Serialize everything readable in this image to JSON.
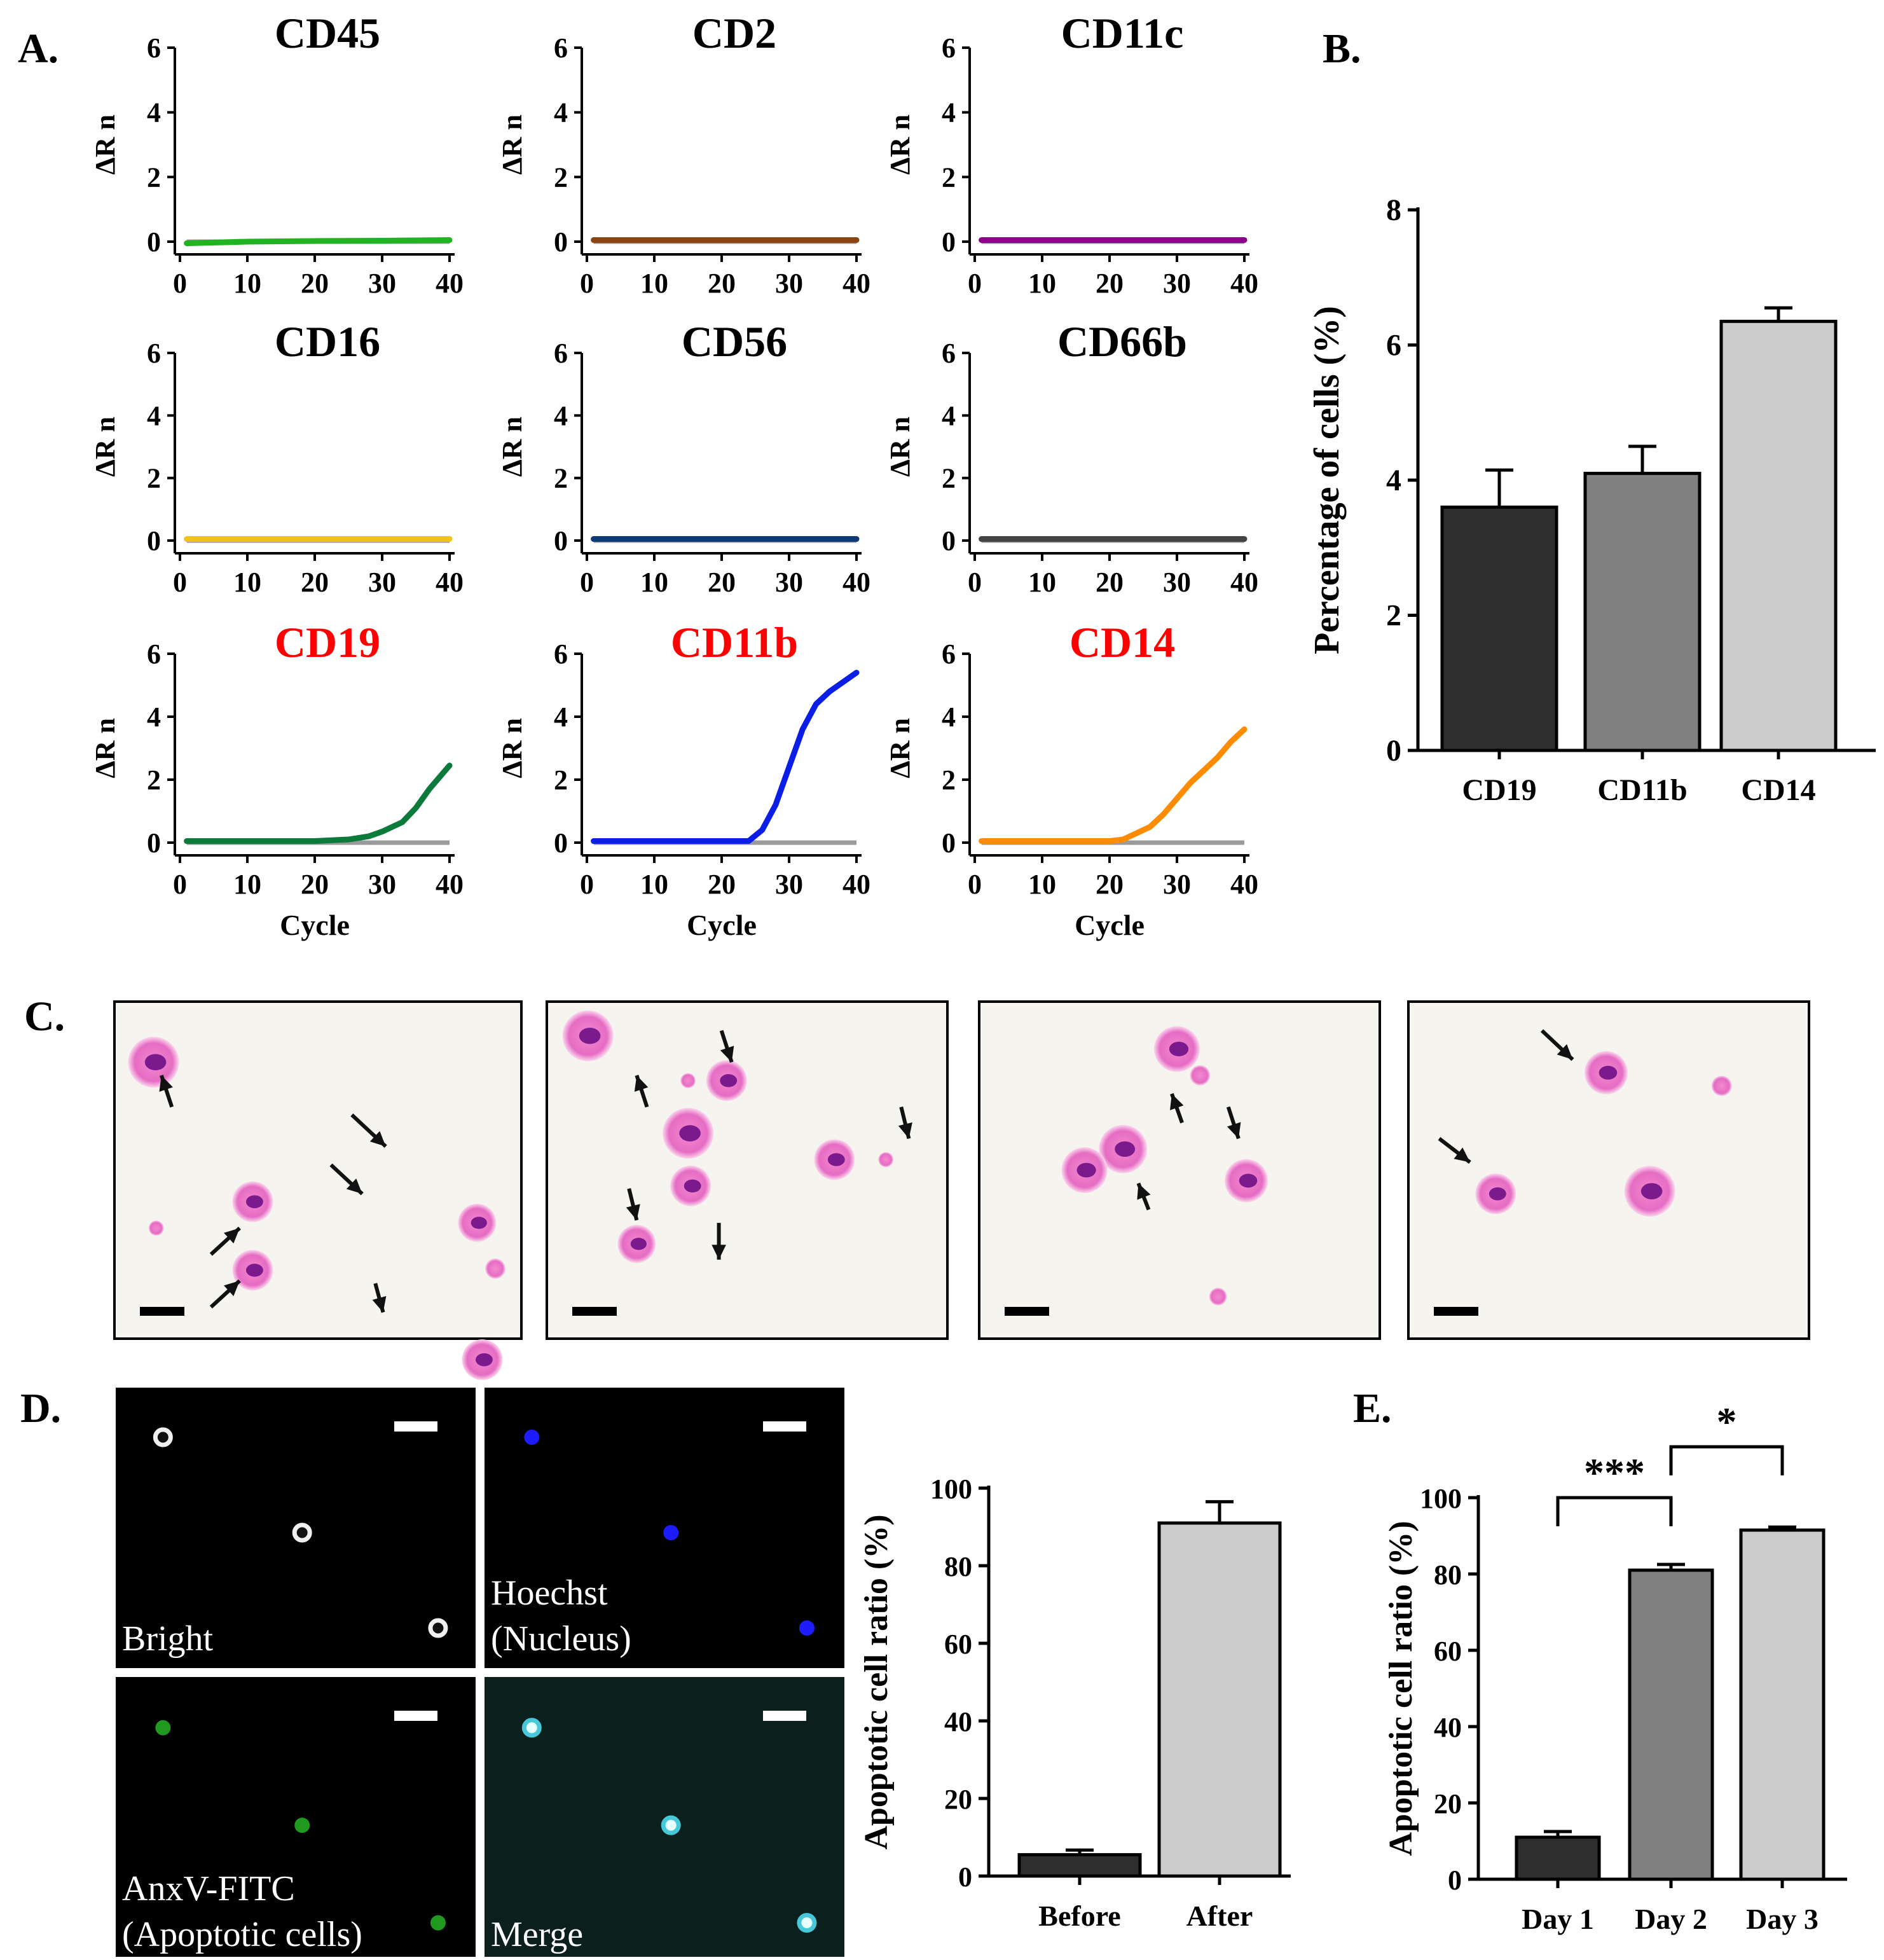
{
  "figure": {
    "panel_labels": {
      "A": "A.",
      "B": "B.",
      "C": "C.",
      "D": "D.",
      "E": "E."
    },
    "panel_a": {
      "xlabel": "Cycle",
      "ylabel": "ΔR n",
      "x_ticks": [
        "0",
        "10",
        "20",
        "30",
        "40"
      ],
      "y_ticks": [
        "0",
        "2",
        "4",
        "6"
      ],
      "title_colors": {
        "negative": "#000000",
        "positive": "#ff0000"
      }
    },
    "panel_c": {
      "description_labels": []
    },
    "panel_d": {
      "images": [
        {
          "label_lines": [
            "Bright"
          ],
          "scheme": "bright"
        },
        {
          "label_lines": [
            "Hoechst",
            "(Nucleus)"
          ],
          "scheme": "hoechst"
        },
        {
          "label_lines": [
            "AnxV-FITC",
            "(Apoptotic cells)"
          ],
          "scheme": "fitc"
        },
        {
          "label_lines": [
            "Merge"
          ],
          "scheme": "merge"
        }
      ]
    }
  },
  "chart_data": [
    {
      "id": "cd45",
      "type": "line",
      "title": "CD45",
      "positive": false,
      "color": "#22b322",
      "xlabel": "",
      "ylabel": "ΔR n",
      "xlim": [
        0,
        40
      ],
      "ylim": [
        0,
        6
      ],
      "x": [
        1,
        10,
        20,
        30,
        40
      ],
      "y": [
        -0.05,
        0.0,
        0.02,
        0.03,
        0.05
      ]
    },
    {
      "id": "cd2",
      "type": "line",
      "title": "CD2",
      "positive": false,
      "color": "#8b4513",
      "xlabel": "",
      "ylabel": "ΔR n",
      "xlim": [
        0,
        40
      ],
      "ylim": [
        0,
        6
      ],
      "x": [
        1,
        40
      ],
      "y": [
        0.05,
        0.05
      ]
    },
    {
      "id": "cd11c",
      "type": "line",
      "title": "CD11c",
      "positive": false,
      "color": "#8b008b",
      "xlabel": "",
      "ylabel": "ΔR n",
      "xlim": [
        0,
        40
      ],
      "ylim": [
        0,
        6
      ],
      "x": [
        1,
        40
      ],
      "y": [
        0.05,
        0.05
      ]
    },
    {
      "id": "cd16",
      "type": "line",
      "title": "CD16",
      "positive": false,
      "color": "#f0c419",
      "xlabel": "",
      "ylabel": "ΔR n",
      "xlim": [
        0,
        40
      ],
      "ylim": [
        0,
        6
      ],
      "x": [
        1,
        40
      ],
      "y": [
        0.05,
        0.05
      ]
    },
    {
      "id": "cd56",
      "type": "line",
      "title": "CD56",
      "positive": false,
      "color": "#0c3b78",
      "xlabel": "",
      "ylabel": "ΔR n",
      "xlim": [
        0,
        40
      ],
      "ylim": [
        0,
        6
      ],
      "x": [
        1,
        40
      ],
      "y": [
        0.05,
        0.05
      ]
    },
    {
      "id": "cd66b",
      "type": "line",
      "title": "CD66b",
      "positive": false,
      "color": "#444444",
      "xlabel": "",
      "ylabel": "ΔR n",
      "xlim": [
        0,
        40
      ],
      "ylim": [
        0,
        6
      ],
      "x": [
        1,
        40
      ],
      "y": [
        0.05,
        0.05
      ]
    },
    {
      "id": "cd19",
      "type": "line",
      "title": "CD19",
      "positive": true,
      "color": "#0b7a3b",
      "xlabel": "Cycle",
      "ylabel": "ΔR n",
      "xlim": [
        0,
        40
      ],
      "ylim": [
        0,
        6
      ],
      "x": [
        1,
        10,
        20,
        25,
        28,
        30,
        33,
        35,
        37,
        40
      ],
      "y": [
        0.05,
        0.05,
        0.05,
        0.1,
        0.2,
        0.35,
        0.65,
        1.1,
        1.7,
        2.45
      ]
    },
    {
      "id": "cd11b",
      "type": "line",
      "title": "CD11b",
      "positive": true,
      "color": "#0a1ee6",
      "xlabel": "Cycle",
      "ylabel": "ΔR n",
      "xlim": [
        0,
        40
      ],
      "ylim": [
        0,
        6
      ],
      "x": [
        1,
        10,
        20,
        24,
        26,
        28,
        30,
        32,
        34,
        36,
        38,
        40
      ],
      "y": [
        0.05,
        0.05,
        0.05,
        0.05,
        0.4,
        1.2,
        2.4,
        3.6,
        4.4,
        4.8,
        5.1,
        5.4
      ]
    },
    {
      "id": "cd14",
      "type": "line",
      "title": "CD14",
      "positive": true,
      "color": "#ff8c00",
      "xlabel": "Cycle",
      "ylabel": "ΔR n",
      "xlim": [
        0,
        40
      ],
      "ylim": [
        0,
        6
      ],
      "x": [
        1,
        10,
        20,
        22,
        24,
        26,
        28,
        30,
        32,
        34,
        36,
        38,
        40
      ],
      "y": [
        0.05,
        0.05,
        0.05,
        0.1,
        0.3,
        0.5,
        0.9,
        1.4,
        1.9,
        2.3,
        2.7,
        3.2,
        3.6
      ]
    },
    {
      "id": "panelB",
      "type": "bar",
      "title": "",
      "xlabel": "",
      "ylabel": "Percentage of cells (%)",
      "categories": [
        "CD19",
        "CD11b",
        "CD14"
      ],
      "values": [
        3.6,
        4.1,
        6.35
      ],
      "errors": [
        0.55,
        0.4,
        0.2
      ],
      "colors": [
        "#2e2e2e",
        "#808080",
        "#cccccc"
      ],
      "ylim": [
        0,
        8
      ],
      "y_ticks": [
        0,
        2,
        4,
        6,
        8
      ]
    },
    {
      "id": "panelD",
      "type": "bar",
      "title": "",
      "xlabel": "",
      "ylabel": "Apoptotic cell ratio (%)",
      "categories": [
        "Before",
        "After"
      ],
      "values": [
        5.5,
        91
      ],
      "errors": [
        1.2,
        5.5
      ],
      "colors": [
        "#2e2e2e",
        "#cccccc"
      ],
      "ylim": [
        0,
        100
      ],
      "y_ticks": [
        0,
        20,
        40,
        60,
        80,
        100
      ]
    },
    {
      "id": "panelE",
      "type": "bar",
      "title": "",
      "xlabel": "",
      "ylabel": "Apoptotic cell ratio (%)",
      "categories": [
        "Day 1",
        "Day 2",
        "Day 3"
      ],
      "values": [
        11,
        81,
        91.5
      ],
      "errors": [
        1.5,
        1.5,
        0.8
      ],
      "colors": [
        "#2e2e2e",
        "#808080",
        "#cccccc"
      ],
      "ylim": [
        0,
        100
      ],
      "y_ticks": [
        0,
        20,
        40,
        60,
        80,
        100
      ],
      "significance": [
        {
          "from": "Day 1",
          "to": "Day 2",
          "label": "***"
        },
        {
          "from": "Day 2",
          "to": "Day 3",
          "label": "*"
        }
      ]
    }
  ]
}
